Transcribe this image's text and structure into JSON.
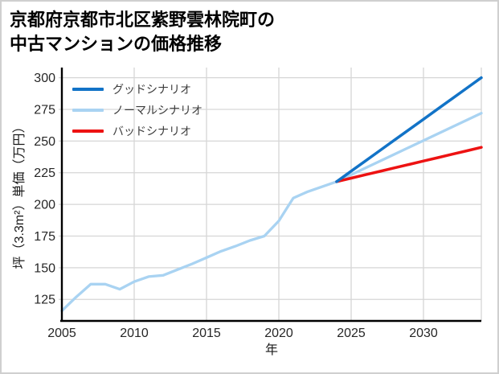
{
  "page": {
    "background": "#ffffff",
    "border_color": "#cfcfcf"
  },
  "title": {
    "line1": "京都府京都市北区紫野雲林院町の",
    "line2": "中古マンションの価格推移"
  },
  "chart_data": {
    "type": "line",
    "title": "京都府京都市北区紫野雲林院町の中古マンションの価格推移",
    "xlabel": "年",
    "ylabel": "坪（3.3m²）単価（万円）",
    "xlim": [
      2005,
      2034
    ],
    "ylim": [
      108,
      308
    ],
    "x_ticks": [
      2005,
      2010,
      2015,
      2020,
      2025,
      2030
    ],
    "y_ticks": [
      125,
      150,
      175,
      200,
      225,
      250,
      275,
      300
    ],
    "grid": true,
    "legend_position": "upper-left",
    "colors": {
      "grid": "#d6d6d6",
      "axis": "#000000",
      "right_spine": "#d6d6d6",
      "tick_label": "#262626"
    },
    "series": [
      {
        "name": "グッドシナリオ",
        "color": "#1273c7",
        "width": 3.5,
        "x": [
          2024,
          2025,
          2026,
          2027,
          2028,
          2029,
          2030,
          2031,
          2032,
          2033,
          2034
        ],
        "values": [
          218,
          226.2,
          234.4,
          242.6,
          250.8,
          259,
          267.2,
          275.4,
          283.6,
          291.8,
          300
        ]
      },
      {
        "name": "ノーマルシナリオ",
        "color": "#a9d3f2",
        "width": 3.3,
        "x": [
          2005,
          2006,
          2007,
          2008,
          2009,
          2010,
          2011,
          2012,
          2013,
          2014,
          2015,
          2016,
          2017,
          2018,
          2019,
          2020,
          2021,
          2022,
          2023,
          2024,
          2025,
          2026,
          2027,
          2028,
          2029,
          2030,
          2031,
          2032,
          2033,
          2034
        ],
        "values": [
          116,
          127,
          137,
          137,
          133,
          139,
          143,
          144,
          148.5,
          153,
          158,
          163,
          167,
          171.5,
          175,
          187,
          205,
          210,
          214,
          218,
          223.4,
          228.8,
          234.2,
          239.6,
          245,
          250.4,
          255.8,
          261.2,
          266.6,
          272
        ]
      },
      {
        "name": "バッドシナリオ",
        "color": "#ed1212",
        "width": 3.5,
        "x": [
          2024,
          2025,
          2026,
          2027,
          2028,
          2029,
          2030,
          2031,
          2032,
          2033,
          2034
        ],
        "values": [
          218,
          220.7,
          223.4,
          226.1,
          228.8,
          231.5,
          234.2,
          236.9,
          239.6,
          242.3,
          245
        ]
      }
    ],
    "notes": {
      "historical_range": "2005-2024 (light blue, same series as ノーマルシナリオ)",
      "forecast_branch_year": 2024,
      "branch_value": 218
    }
  }
}
